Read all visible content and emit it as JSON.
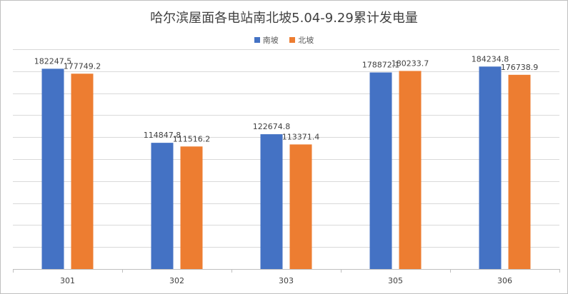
{
  "chart_data": {
    "type": "bar",
    "title": "哈尔滨屋面各电站南北坡5.04-9.29累计发电量",
    "categories": [
      "301",
      "302",
      "303",
      "305",
      "306"
    ],
    "series": [
      {
        "name": "南坡",
        "color": "#4472C4",
        "values": [
          182247.5,
          114847.8,
          122674.8,
          178872.1,
          184234.8
        ]
      },
      {
        "name": "北坡",
        "color": "#ED7D31",
        "values": [
          177749.2,
          111516.2,
          113371.4,
          180233.7,
          176738.9
        ]
      }
    ],
    "ylim": [
      0,
      200000
    ],
    "grid": true,
    "legend": "top"
  }
}
